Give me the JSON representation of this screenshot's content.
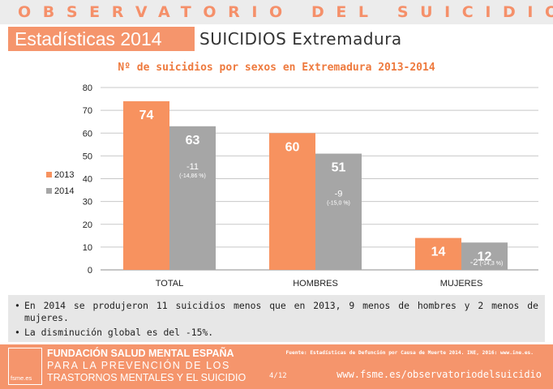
{
  "header": {
    "brand": "OBSERVATORIO DEL SUICIDIO",
    "subtitle_box": "Estadísticas 2014",
    "subtitle_text": "SUICIDIOS Extremadura"
  },
  "chart_data": {
    "type": "bar",
    "title": "Nº de suicidios por sexos en Extremadura 2013-2014",
    "categories": [
      "TOTAL",
      "HOMBRES",
      "MUJERES"
    ],
    "series": [
      {
        "name": "2013",
        "values": [
          74,
          60,
          14
        ],
        "color": "#f7925f"
      },
      {
        "name": "2014",
        "values": [
          63,
          51,
          12
        ],
        "color": "#a6a6a6"
      }
    ],
    "ylim": [
      0,
      80
    ],
    "yticks": [
      0,
      10,
      20,
      30,
      40,
      50,
      60,
      70,
      80
    ],
    "grid": true,
    "legend_position": "left",
    "annotations": [
      {
        "category": "TOTAL",
        "diff": "-11",
        "pct": "(-14,86 %)"
      },
      {
        "category": "HOMBRES",
        "diff": "-9",
        "pct": "(-15,0 %)"
      },
      {
        "category": "MUJERES",
        "diff": "-2",
        "pct": "(-14,3 %)"
      }
    ]
  },
  "notes": [
    "En 2014 se produjeron 11 suicidios menos que en 2013, 9 menos de hombres y 2 menos de mujeres.",
    "La disminución global es del -15%."
  ],
  "footer": {
    "logo_text": "fsme.es",
    "org_line1": "FUNDACIÓN SALUD MENTAL ESPAÑA",
    "org_line2": "PARA LA PREVENCIÓN DE LOS",
    "org_line3": "TRASTORNOS MENTALES Y EL SUICIDIO",
    "source": "Fuente: Estadísticas de Defunción por Causa de Muerte 2014. INE, 2016: www.ine.es.",
    "page": "4/12",
    "website": "www.fsme.es/observatoriodelsuicidio"
  },
  "colors": {
    "accent": "#f5956c",
    "series_2013": "#f7925f",
    "series_2014": "#a6a6a6",
    "title": "#ee7a3e"
  }
}
